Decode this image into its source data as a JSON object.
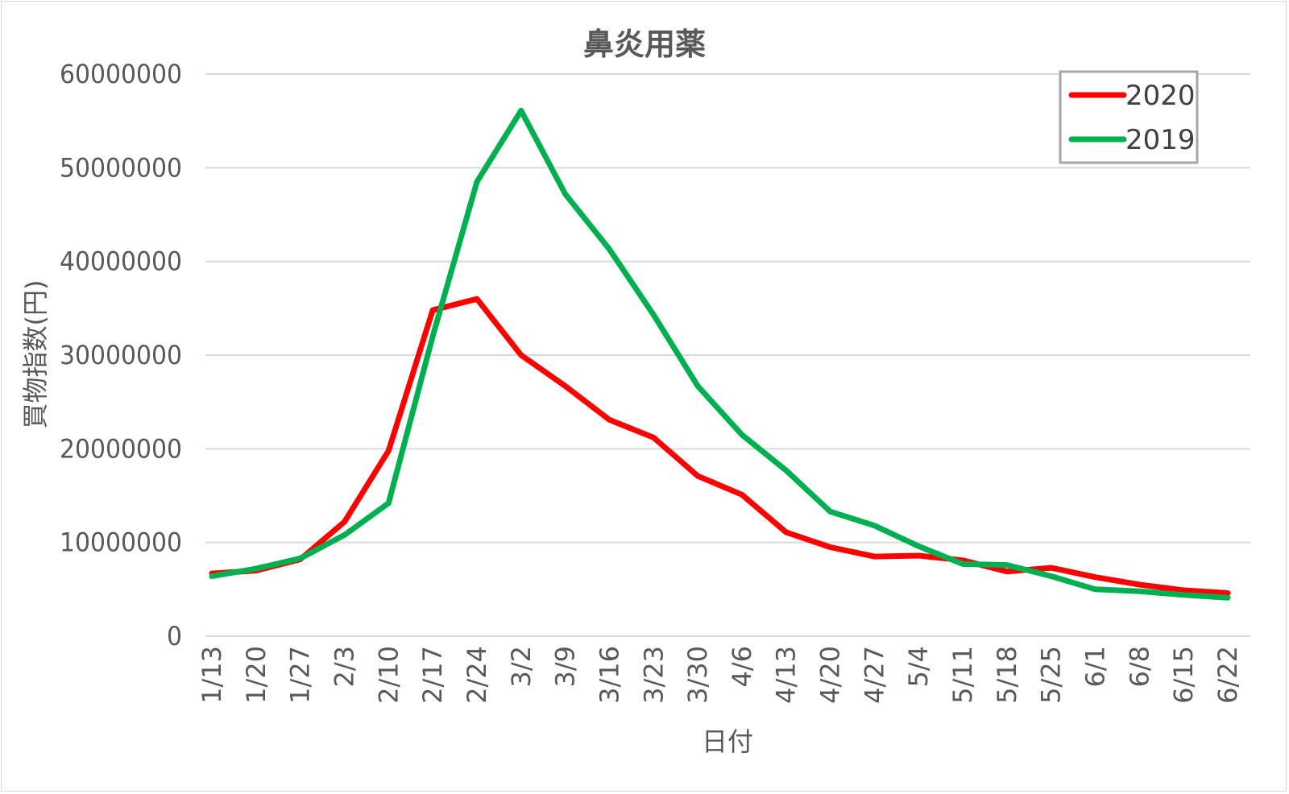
{
  "chart_data": {
    "type": "line",
    "title": "鼻炎用薬",
    "xlabel": "日付",
    "ylabel": "買物指数(円)",
    "ylim": [
      0,
      60000000
    ],
    "yticks": [
      0,
      10000000,
      20000000,
      30000000,
      40000000,
      50000000,
      60000000
    ],
    "ytick_labels": [
      "0",
      "10000000",
      "20000000",
      "30000000",
      "40000000",
      "50000000",
      "60000000"
    ],
    "grid": true,
    "legend": "top-right",
    "categories": [
      "1/13",
      "1/20",
      "1/27",
      "2/3",
      "2/10",
      "2/17",
      "2/24",
      "3/2",
      "3/9",
      "3/16",
      "3/23",
      "3/30",
      "4/6",
      "4/13",
      "4/20",
      "4/27",
      "5/4",
      "5/11",
      "5/18",
      "5/25",
      "6/1",
      "6/8",
      "6/15",
      "6/22"
    ],
    "series": [
      {
        "name": "2020",
        "color": "#ff0000",
        "values": [
          6700000,
          7000000,
          8200000,
          12200000,
          19800000,
          34800000,
          36000000,
          30000000,
          26700000,
          23100000,
          21200000,
          17100000,
          15100000,
          11100000,
          9500000,
          8500000,
          8600000,
          8100000,
          6900000,
          7300000,
          6300000,
          5500000,
          4900000,
          4600000
        ]
      },
      {
        "name": "2019",
        "color": "#00b050",
        "values": [
          6400000,
          7200000,
          8300000,
          10800000,
          14200000,
          32000000,
          48500000,
          56100000,
          47200000,
          41300000,
          34300000,
          26700000,
          21500000,
          17700000,
          13300000,
          11800000,
          9600000,
          7700000,
          7600000,
          6400000,
          5000000,
          4800000,
          4400000,
          4100000
        ]
      }
    ]
  }
}
